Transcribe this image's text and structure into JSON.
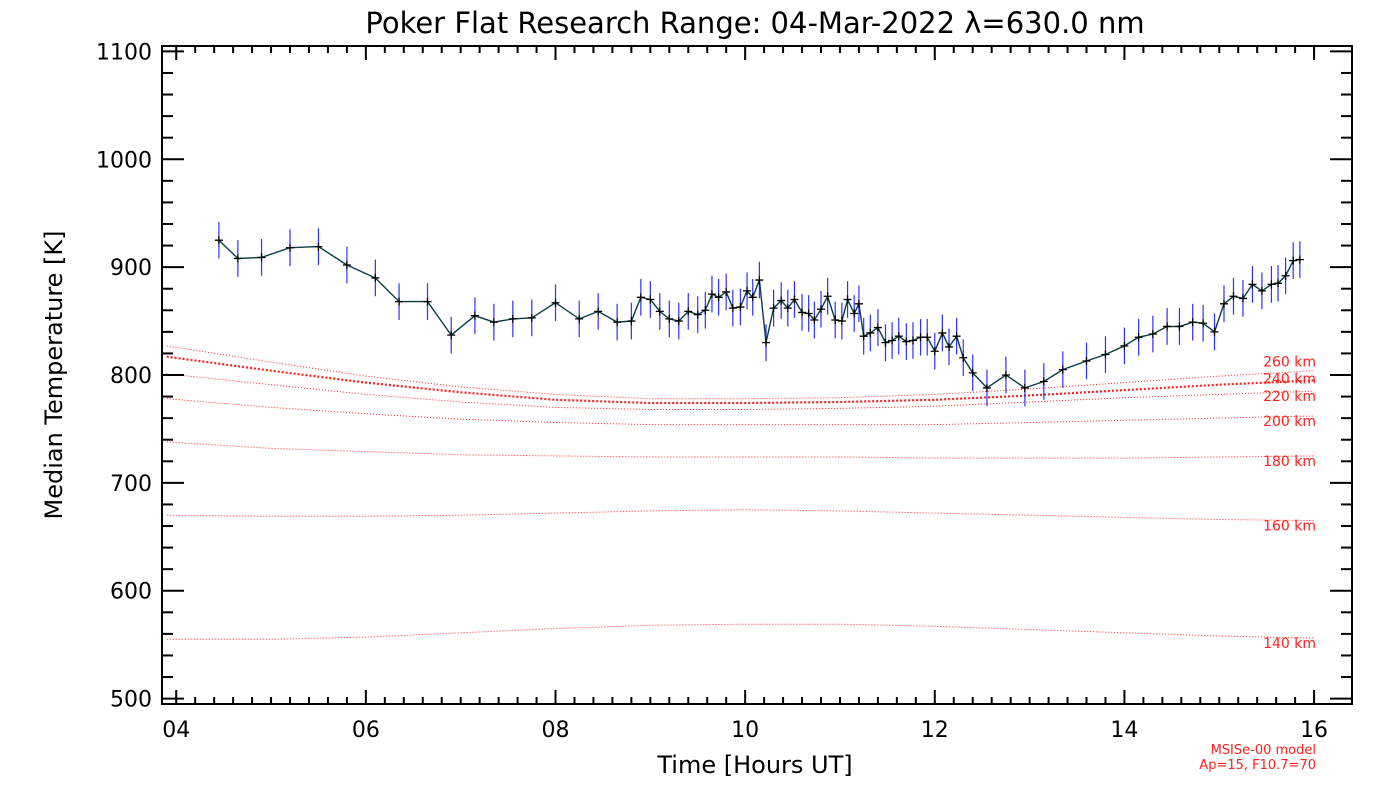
{
  "chart_data": {
    "type": "line",
    "title": "Poker Flat Research Range: 04-Mar-2022 λ=630.0 nm",
    "xlabel": "Time [Hours UT]",
    "ylabel": "Median Temperature [K]",
    "xlim": [
      3.85,
      16.4
    ],
    "ylim": [
      495,
      1105
    ],
    "x_ticks": [
      4,
      6,
      8,
      10,
      12,
      14,
      16
    ],
    "x_tick_labels": [
      "04",
      "06",
      "08",
      "10",
      "12",
      "14",
      "16"
    ],
    "y_ticks": [
      500,
      600,
      700,
      800,
      900,
      1000,
      1100
    ],
    "y_tick_labels": [
      "500",
      "600",
      "700",
      "800",
      "900",
      "1000",
      "1100"
    ],
    "grid": false,
    "colors": {
      "line": "#0a3d45",
      "marker": "#000000",
      "errorbar": "#3030ff",
      "model": "#ff2020"
    },
    "series": [
      {
        "points": [
          [
            4.45,
            925
          ],
          [
            4.65,
            908
          ],
          [
            4.9,
            909
          ],
          [
            5.2,
            918
          ],
          [
            5.5,
            919
          ],
          [
            5.8,
            902
          ],
          [
            6.1,
            890
          ],
          [
            6.35,
            868
          ],
          [
            6.65,
            868
          ],
          [
            6.9,
            837
          ],
          [
            7.15,
            855
          ],
          [
            7.35,
            849
          ],
          [
            7.55,
            852
          ],
          [
            7.75,
            853
          ],
          [
            8.0,
            867
          ],
          [
            8.25,
            852
          ],
          [
            8.45,
            859
          ],
          [
            8.65,
            849
          ],
          [
            8.8,
            850
          ],
          [
            8.9,
            872
          ],
          [
            9.0,
            870
          ],
          [
            9.1,
            859
          ],
          [
            9.2,
            852
          ],
          [
            9.3,
            850
          ],
          [
            9.4,
            859
          ],
          [
            9.5,
            856
          ],
          [
            9.58,
            860
          ],
          [
            9.65,
            875
          ],
          [
            9.72,
            872
          ],
          [
            9.8,
            877
          ],
          [
            9.87,
            862
          ],
          [
            9.95,
            863
          ],
          [
            10.02,
            878
          ],
          [
            10.08,
            872
          ],
          [
            10.15,
            888
          ],
          [
            10.22,
            830
          ],
          [
            10.3,
            862
          ],
          [
            10.38,
            869
          ],
          [
            10.45,
            862
          ],
          [
            10.52,
            870
          ],
          [
            10.6,
            858
          ],
          [
            10.67,
            857
          ],
          [
            10.73,
            851
          ],
          [
            10.8,
            861
          ],
          [
            10.87,
            873
          ],
          [
            10.95,
            851
          ],
          [
            11.02,
            850
          ],
          [
            11.08,
            870
          ],
          [
            11.15,
            857
          ],
          [
            11.2,
            866
          ],
          [
            11.25,
            836
          ],
          [
            11.32,
            839
          ],
          [
            11.4,
            844
          ],
          [
            11.48,
            830
          ],
          [
            11.55,
            832
          ],
          [
            11.62,
            836
          ],
          [
            11.7,
            831
          ],
          [
            11.77,
            832
          ],
          [
            11.85,
            835
          ],
          [
            11.92,
            835
          ],
          [
            12.0,
            822
          ],
          [
            12.08,
            839
          ],
          [
            12.15,
            826
          ],
          [
            12.23,
            836
          ],
          [
            12.3,
            816
          ],
          [
            12.4,
            802
          ],
          [
            12.55,
            788
          ],
          [
            12.75,
            800
          ],
          [
            12.95,
            788
          ],
          [
            13.15,
            794
          ],
          [
            13.35,
            805
          ],
          [
            13.6,
            813
          ],
          [
            13.8,
            819
          ],
          [
            14.0,
            827
          ],
          [
            14.15,
            835
          ],
          [
            14.3,
            838
          ],
          [
            14.45,
            845
          ],
          [
            14.58,
            845
          ],
          [
            14.72,
            849
          ],
          [
            14.83,
            848
          ],
          [
            14.95,
            840
          ],
          [
            15.05,
            866
          ],
          [
            15.15,
            873
          ],
          [
            15.25,
            871
          ],
          [
            15.35,
            884
          ],
          [
            15.45,
            878
          ],
          [
            15.55,
            884
          ],
          [
            15.62,
            885
          ],
          [
            15.7,
            892
          ],
          [
            15.78,
            906
          ],
          [
            15.85,
            907
          ]
        ],
        "error": 17
      }
    ],
    "model_series": [
      {
        "name": "260 km",
        "points": [
          [
            3.9,
            827
          ],
          [
            5,
            812
          ],
          [
            6,
            799
          ],
          [
            7,
            789
          ],
          [
            8,
            782
          ],
          [
            9,
            778
          ],
          [
            10,
            778
          ],
          [
            11,
            779
          ],
          [
            12,
            782
          ],
          [
            13,
            787
          ],
          [
            14,
            793
          ],
          [
            15,
            799
          ],
          [
            16,
            804
          ]
        ]
      },
      {
        "name": "240 km",
        "points": [
          [
            3.9,
            817
          ],
          [
            5,
            804
          ],
          [
            6,
            793
          ],
          [
            7,
            784
          ],
          [
            8,
            777
          ],
          [
            9,
            774
          ],
          [
            10,
            774
          ],
          [
            11,
            775
          ],
          [
            12,
            777
          ],
          [
            13,
            781
          ],
          [
            14,
            786
          ],
          [
            15,
            791
          ],
          [
            16,
            795
          ]
        ]
      },
      {
        "name": "220 km",
        "points": [
          [
            3.9,
            801
          ],
          [
            5,
            791
          ],
          [
            6,
            782
          ],
          [
            7,
            775
          ],
          [
            8,
            770
          ],
          [
            9,
            768
          ],
          [
            10,
            768
          ],
          [
            11,
            769
          ],
          [
            12,
            771
          ],
          [
            13,
            775
          ],
          [
            14,
            779
          ],
          [
            15,
            782
          ],
          [
            16,
            785
          ]
        ]
      },
      {
        "name": "200 km",
        "points": [
          [
            3.9,
            778
          ],
          [
            5,
            770
          ],
          [
            6,
            764
          ],
          [
            7,
            759
          ],
          [
            8,
            756
          ],
          [
            9,
            754
          ],
          [
            10,
            754
          ],
          [
            11,
            754
          ],
          [
            12,
            754
          ],
          [
            13,
            756
          ],
          [
            14,
            758
          ],
          [
            15,
            760
          ],
          [
            16,
            762
          ]
        ]
      },
      {
        "name": "180 km",
        "points": [
          [
            3.9,
            738
          ],
          [
            5,
            732
          ],
          [
            6,
            729
          ],
          [
            7,
            726
          ],
          [
            8,
            725
          ],
          [
            9,
            724
          ],
          [
            10,
            724
          ],
          [
            11,
            724
          ],
          [
            12,
            723
          ],
          [
            13,
            723
          ],
          [
            14,
            723
          ],
          [
            15,
            724
          ],
          [
            16,
            725
          ]
        ]
      },
      {
        "name": "160 km",
        "points": [
          [
            3.9,
            670
          ],
          [
            5,
            669
          ],
          [
            6,
            669
          ],
          [
            7,
            670
          ],
          [
            8,
            672
          ],
          [
            9,
            674
          ],
          [
            10,
            675
          ],
          [
            11,
            674
          ],
          [
            12,
            672
          ],
          [
            13,
            670
          ],
          [
            14,
            668
          ],
          [
            15,
            666
          ],
          [
            16,
            665
          ]
        ]
      },
      {
        "name": "140 km",
        "points": [
          [
            3.9,
            555
          ],
          [
            5,
            555
          ],
          [
            6,
            557
          ],
          [
            7,
            561
          ],
          [
            8,
            565
          ],
          [
            9,
            568
          ],
          [
            10,
            569
          ],
          [
            11,
            569
          ],
          [
            12,
            567
          ],
          [
            13,
            564
          ],
          [
            14,
            561
          ],
          [
            15,
            558
          ],
          [
            16,
            556
          ]
        ]
      }
    ],
    "model_note": [
      "MSISe-00 model",
      "Ap=15, F10.7=70"
    ]
  }
}
